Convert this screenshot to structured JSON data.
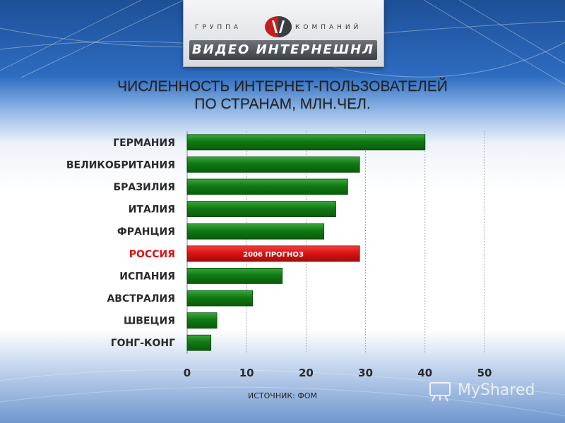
{
  "logo": {
    "top_left": "ГРУППА",
    "top_right": "КОМПАНИЙ",
    "name": "ВИДЕО ИНТЕРНЕШНЛ"
  },
  "title_lines": [
    "ЧИСЛЕННОСТЬ ИНТЕРНЕТ-ПОЛЬЗОВАТЕЛЕЙ",
    "ПО СТРАНАМ, МЛН.ЧЕЛ."
  ],
  "chart_data": {
    "type": "bar",
    "orientation": "horizontal",
    "categories": [
      "ГЕРМАНИЯ",
      "ВЕЛИКОБРИТАНИЯ",
      "БРАЗИЛИЯ",
      "ИТАЛИЯ",
      "ФРАНЦИЯ",
      "РОССИЯ",
      "ИСПАНИЯ",
      "АВСТРАЛИЯ",
      "ШВЕЦИЯ",
      "ГОНГ-КОНГ"
    ],
    "values": [
      40,
      29,
      27,
      25,
      23,
      29,
      16,
      11,
      5,
      4
    ],
    "highlight": {
      "category": "РОССИЯ",
      "color": "#dd1414",
      "label": "2006 ПРОГНОЗ"
    },
    "bar_color": "#0f7a12",
    "xlim": [
      0,
      50
    ],
    "xticks": [
      "0",
      "10",
      "20",
      "30",
      "40",
      "50"
    ],
    "grid": true,
    "source": "ИСТОЧНИК: ФОМ"
  },
  "watermark": {
    "text": "MyShared"
  }
}
